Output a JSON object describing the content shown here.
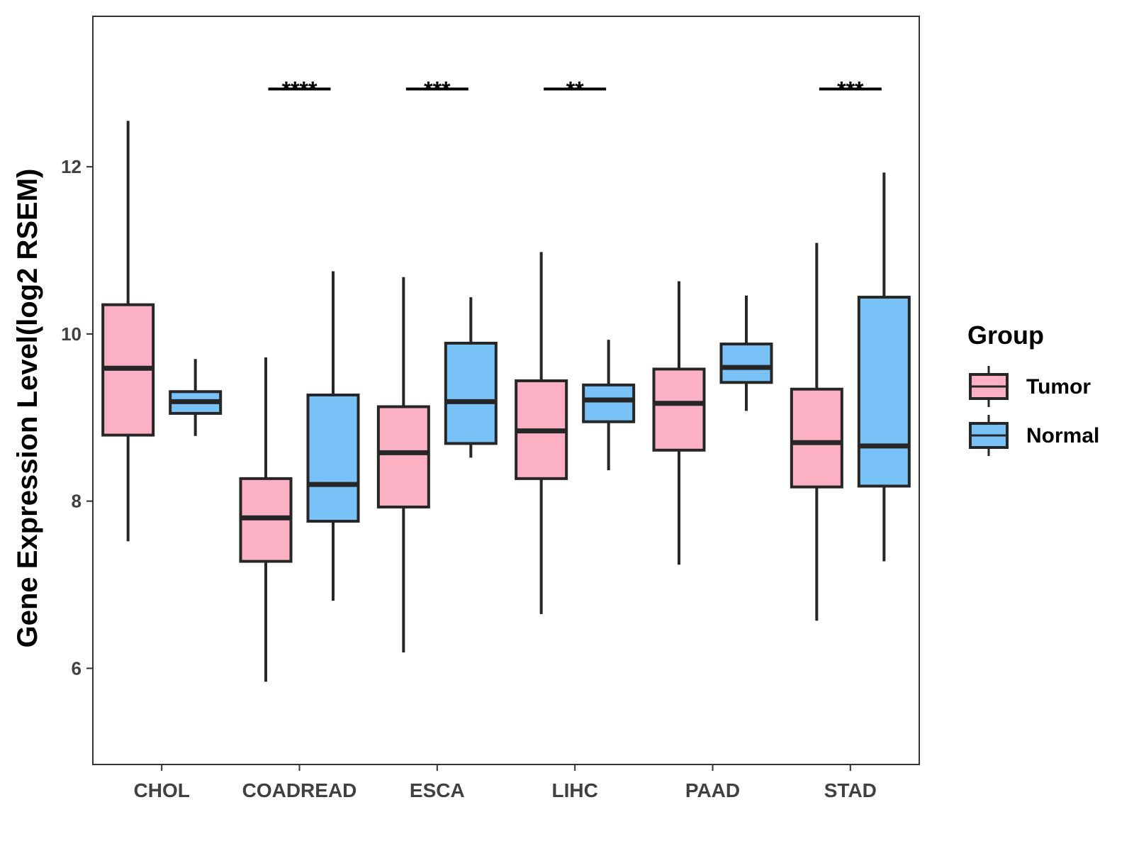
{
  "chart_data": {
    "type": "boxplot",
    "title": "",
    "xlabel": "",
    "ylabel": "Gene Expression Level(log2 RSEM)",
    "ylim": [
      4.85,
      13.8
    ],
    "yticks": [
      6,
      8,
      10,
      12
    ],
    "grid": false,
    "legend": {
      "title": "Group",
      "position": "right",
      "entries": [
        "Tumor",
        "Normal"
      ]
    },
    "colors": {
      "Tumor": "#FBB1C3",
      "Normal": "#78C2F7",
      "outline": "#262626"
    },
    "categories": [
      "CHOL",
      "COADREAD",
      "ESCA",
      "LIHC",
      "PAAD",
      "STAD"
    ],
    "series": [
      {
        "name": "Tumor",
        "boxes": [
          {
            "min": 7.52,
            "q1": 8.79,
            "median": 9.59,
            "q3": 10.35,
            "max": 12.55
          },
          {
            "min": 5.84,
            "q1": 7.28,
            "median": 7.8,
            "q3": 8.27,
            "max": 9.72
          },
          {
            "min": 6.19,
            "q1": 7.93,
            "median": 8.58,
            "q3": 9.13,
            "max": 10.68
          },
          {
            "min": 6.65,
            "q1": 8.27,
            "median": 8.84,
            "q3": 9.44,
            "max": 10.98
          },
          {
            "min": 7.24,
            "q1": 8.61,
            "median": 9.17,
            "q3": 9.58,
            "max": 10.63
          },
          {
            "min": 6.57,
            "q1": 8.17,
            "median": 8.7,
            "q3": 9.34,
            "max": 11.09
          }
        ]
      },
      {
        "name": "Normal",
        "boxes": [
          {
            "min": 8.78,
            "q1": 9.05,
            "median": 9.19,
            "q3": 9.31,
            "max": 9.7
          },
          {
            "min": 6.81,
            "q1": 7.76,
            "median": 8.2,
            "q3": 9.27,
            "max": 10.75
          },
          {
            "min": 8.52,
            "q1": 8.69,
            "median": 9.19,
            "q3": 9.89,
            "max": 10.44
          },
          {
            "min": 8.37,
            "q1": 8.95,
            "median": 9.21,
            "q3": 9.39,
            "max": 9.93
          },
          {
            "min": 9.08,
            "q1": 9.42,
            "median": 9.6,
            "q3": 9.88,
            "max": 10.46
          },
          {
            "min": 7.28,
            "q1": 8.18,
            "median": 8.66,
            "q3": 10.44,
            "max": 11.93
          }
        ]
      }
    ],
    "significance": [
      {
        "category": "COADREAD",
        "label": "****"
      },
      {
        "category": "ESCA",
        "label": "***"
      },
      {
        "category": "LIHC",
        "label": "**"
      },
      {
        "category": "STAD",
        "label": "***"
      }
    ],
    "significance_y": 12.93
  }
}
